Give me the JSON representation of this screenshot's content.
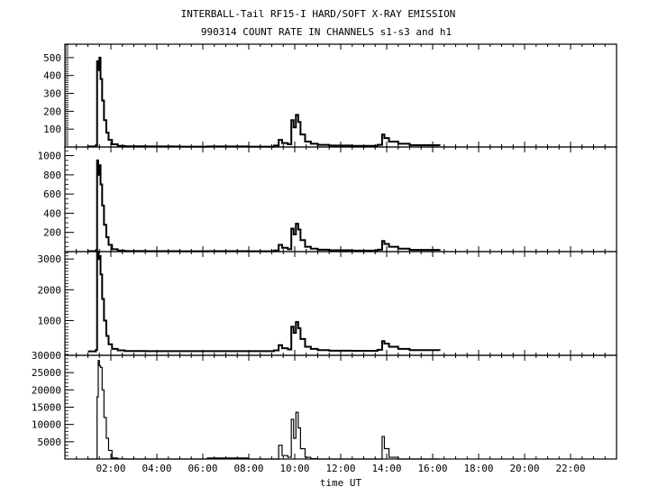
{
  "chart_data": {
    "type": "line",
    "title": "INTERBALL-Tail RF15-I HARD/SOFT X-RAY EMISSION",
    "subtitle": "990314  COUNT RATE IN CHANNELS s1-s3 and h1",
    "xlabel": "time UT",
    "xlim": [
      0,
      24
    ],
    "x_tick_labels": [
      "02:00",
      "04:00",
      "06:00",
      "08:00",
      "10:00",
      "12:00",
      "14:00",
      "16:00",
      "18:00",
      "20:00",
      "22:00"
    ],
    "x_tick_hours": [
      2,
      4,
      6,
      8,
      10,
      12,
      14,
      16,
      18,
      20,
      22
    ],
    "x": [
      1.0,
      1.35,
      1.4,
      1.45,
      1.5,
      1.55,
      1.62,
      1.7,
      1.8,
      1.9,
      2.05,
      2.3,
      2.6,
      3.5,
      5.0,
      6.2,
      8.0,
      9.1,
      9.3,
      9.45,
      9.7,
      9.85,
      9.95,
      10.05,
      10.15,
      10.25,
      10.45,
      10.7,
      11.0,
      11.5,
      12.5,
      13.6,
      13.8,
      13.9,
      14.1,
      14.5,
      15.0,
      16.3
    ],
    "panels": [
      {
        "name": "s1",
        "ylim": [
          0,
          575
        ],
        "yticks": [
          100,
          200,
          300,
          400,
          500
        ],
        "ytick_labels": [
          "100",
          "200",
          "300",
          "400",
          "500"
        ],
        "minor_step": 10,
        "values": [
          3,
          10,
          480,
          430,
          500,
          380,
          260,
          150,
          80,
          40,
          15,
          6,
          4,
          3,
          2,
          3,
          2,
          8,
          40,
          22,
          15,
          150,
          110,
          180,
          140,
          70,
          30,
          18,
          12,
          8,
          6,
          12,
          70,
          50,
          30,
          18,
          10,
          6
        ]
      },
      {
        "name": "s2",
        "ylim": [
          0,
          1090
        ],
        "yticks": [
          200,
          400,
          600,
          800,
          1000
        ],
        "ytick_labels": [
          "200",
          "400",
          "600",
          "800",
          "1000"
        ],
        "minor_step": 50,
        "values": [
          5,
          15,
          950,
          800,
          900,
          700,
          480,
          280,
          150,
          70,
          25,
          10,
          6,
          5,
          4,
          5,
          4,
          12,
          70,
          40,
          25,
          240,
          180,
          290,
          230,
          120,
          50,
          30,
          20,
          14,
          10,
          20,
          110,
          80,
          50,
          30,
          18,
          10
        ]
      },
      {
        "name": "s3",
        "ylim": [
          -130,
          3240
        ],
        "yticks": [
          1000,
          2000,
          3000
        ],
        "ytick_labels": [
          "1000",
          "2000",
          "3000"
        ],
        "minor_step": 100,
        "values": [
          0,
          50,
          3300,
          3000,
          3100,
          2500,
          1700,
          1000,
          500,
          230,
          80,
          30,
          10,
          5,
          5,
          5,
          5,
          30,
          200,
          100,
          60,
          800,
          600,
          950,
          750,
          400,
          150,
          80,
          40,
          20,
          15,
          50,
          330,
          250,
          150,
          80,
          40,
          20
        ]
      },
      {
        "name": "h1",
        "ylim": [
          0,
          30000
        ],
        "yticks": [
          5000,
          10000,
          15000,
          20000,
          25000,
          30000
        ],
        "ytick_labels": [
          "5000",
          "10000",
          "15000",
          "20000",
          "25000",
          "30000"
        ],
        "minor_step": 1000,
        "values": [
          0,
          0,
          18000,
          28500,
          27000,
          26500,
          20000,
          12000,
          6000,
          2500,
          300,
          50,
          0,
          0,
          0,
          300,
          0,
          0,
          4000,
          1000,
          500,
          11500,
          6000,
          13500,
          9000,
          3000,
          500,
          100,
          0,
          0,
          0,
          0,
          6500,
          3000,
          500,
          0,
          0,
          0
        ]
      }
    ],
    "grid": false
  }
}
